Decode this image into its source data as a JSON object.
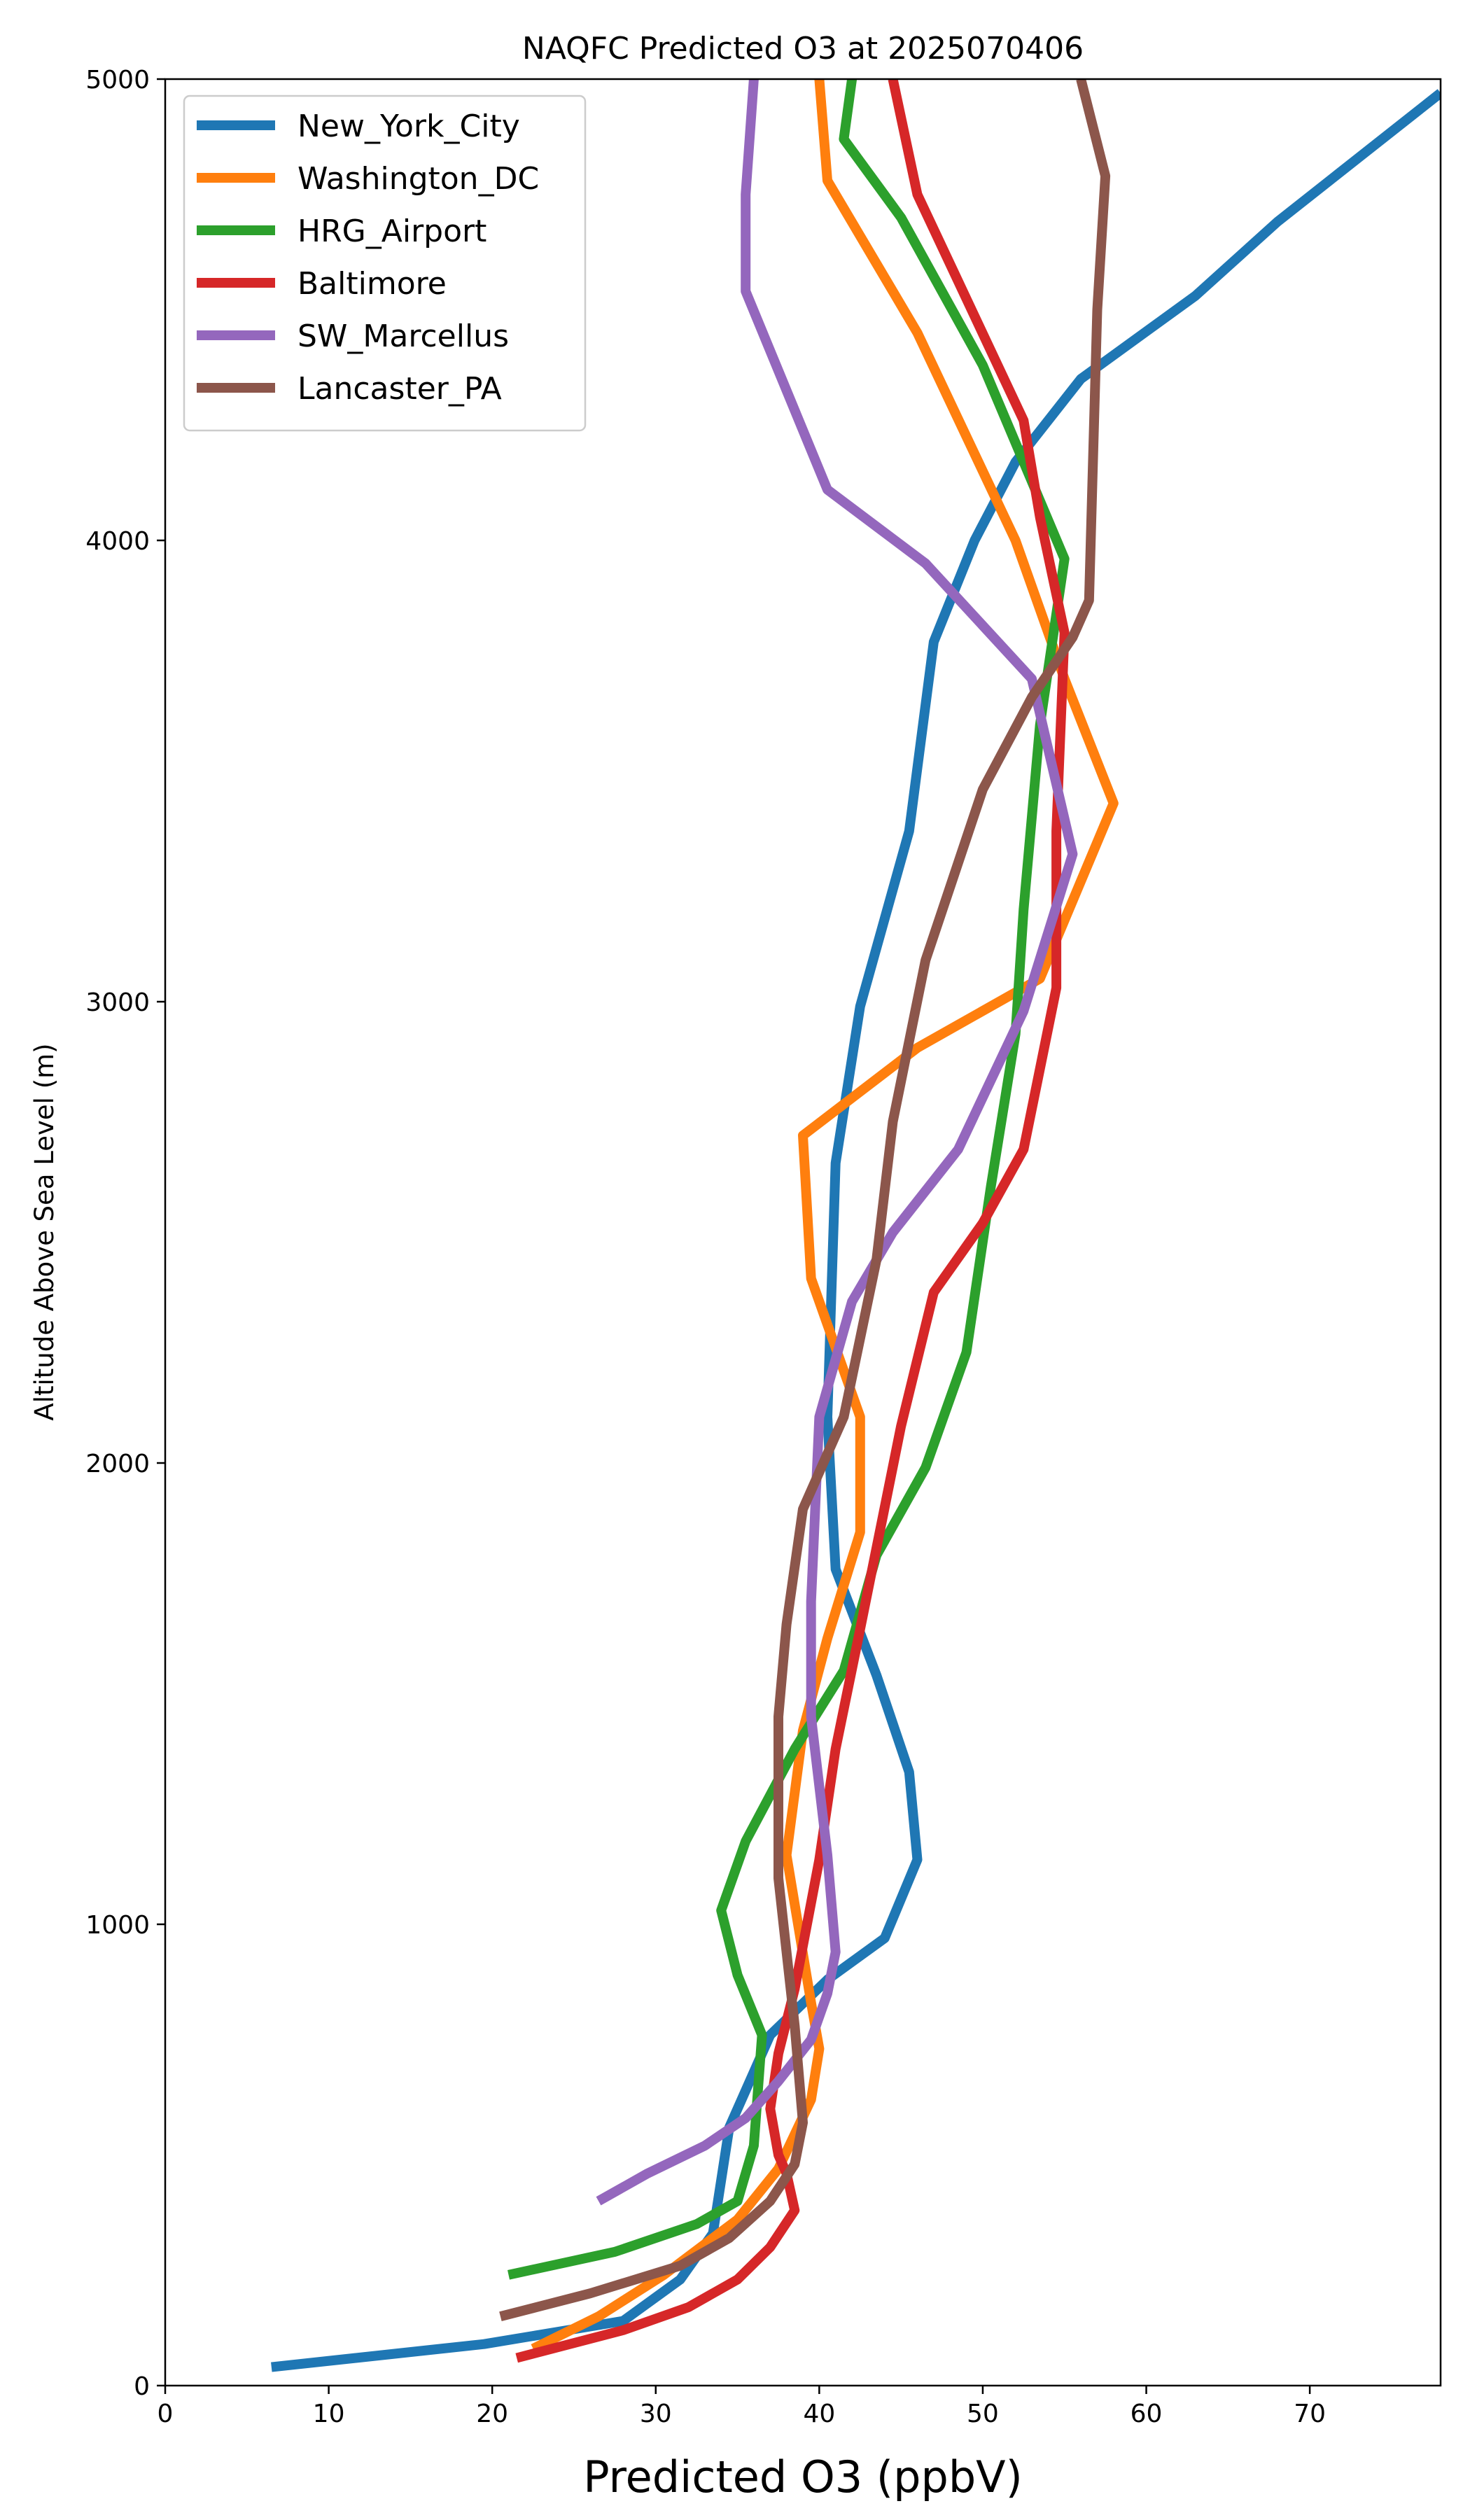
{
  "chart_data": {
    "type": "line",
    "title": "NAQFC Predicted O3 at 2025070406",
    "xlabel": "Predicted O3 (ppbV)",
    "ylabel": "Altitude Above Sea Level (m)",
    "xlim": [
      0,
      78
    ],
    "ylim": [
      0,
      5000
    ],
    "xticks": [
      0,
      10,
      20,
      30,
      40,
      50,
      60,
      70
    ],
    "yticks": [
      0,
      1000,
      2000,
      3000,
      4000,
      5000
    ],
    "grid": false,
    "legend_position": "upper-left",
    "series": [
      {
        "name": "New_York_City",
        "color": "#1f77b4",
        "points": [
          [
            6.5,
            40
          ],
          [
            19.5,
            90
          ],
          [
            28,
            140
          ],
          [
            31.5,
            230
          ],
          [
            33.5,
            330
          ],
          [
            34.5,
            560
          ],
          [
            37,
            760
          ],
          [
            40.5,
            880
          ],
          [
            44,
            970
          ],
          [
            46,
            1140
          ],
          [
            45.5,
            1330
          ],
          [
            43.5,
            1540
          ],
          [
            41,
            1770
          ],
          [
            40.5,
            2100
          ],
          [
            41,
            2650
          ],
          [
            42.5,
            2990
          ],
          [
            45.5,
            3370
          ],
          [
            47,
            3780
          ],
          [
            49.5,
            4000
          ],
          [
            52,
            4170
          ],
          [
            56,
            4350
          ],
          [
            63,
            4530
          ],
          [
            68,
            4690
          ],
          [
            73,
            4830
          ],
          [
            78,
            4970
          ]
        ]
      },
      {
        "name": "Washington_DC",
        "color": "#ff7f0e",
        "points": [
          [
            22.5,
            80
          ],
          [
            26.5,
            150
          ],
          [
            30.5,
            240
          ],
          [
            35,
            360
          ],
          [
            37.5,
            470
          ],
          [
            39.5,
            620
          ],
          [
            40,
            730
          ],
          [
            39.5,
            830
          ],
          [
            38,
            1150
          ],
          [
            39,
            1420
          ],
          [
            40.5,
            1620
          ],
          [
            42.5,
            1850
          ],
          [
            42.5,
            2100
          ],
          [
            39.5,
            2400
          ],
          [
            39,
            2710
          ],
          [
            46,
            2900
          ],
          [
            53.5,
            3050
          ],
          [
            58,
            3430
          ],
          [
            55,
            3700
          ],
          [
            52,
            4000
          ],
          [
            46,
            4450
          ],
          [
            40.5,
            4780
          ],
          [
            40,
            5000
          ]
        ]
      },
      {
        "name": "HRG_Airport",
        "color": "#2ca02c",
        "points": [
          [
            21,
            240
          ],
          [
            27.5,
            290
          ],
          [
            32.5,
            350
          ],
          [
            35,
            400
          ],
          [
            36,
            520
          ],
          [
            36.5,
            760
          ],
          [
            35,
            890
          ],
          [
            34,
            1030
          ],
          [
            35.5,
            1180
          ],
          [
            38.5,
            1380
          ],
          [
            41.5,
            1550
          ],
          [
            43.5,
            1800
          ],
          [
            46.5,
            1990
          ],
          [
            49,
            2240
          ],
          [
            50.5,
            2600
          ],
          [
            52,
            2930
          ],
          [
            52.5,
            3200
          ],
          [
            53.5,
            3600
          ],
          [
            55,
            3960
          ],
          [
            50,
            4380
          ],
          [
            45,
            4700
          ],
          [
            41.5,
            4870
          ],
          [
            42,
            5000
          ]
        ]
      },
      {
        "name": "Baltimore",
        "color": "#d62728",
        "points": [
          [
            21.5,
            60
          ],
          [
            28,
            120
          ],
          [
            32,
            170
          ],
          [
            35,
            230
          ],
          [
            37,
            300
          ],
          [
            38.5,
            380
          ],
          [
            38,
            460
          ],
          [
            37.5,
            500
          ],
          [
            37,
            600
          ],
          [
            37.5,
            720
          ],
          [
            38.5,
            860
          ],
          [
            40,
            1140
          ],
          [
            41,
            1380
          ],
          [
            42.5,
            1640
          ],
          [
            45,
            2080
          ],
          [
            47,
            2370
          ],
          [
            50,
            2520
          ],
          [
            52.5,
            2680
          ],
          [
            54.5,
            3030
          ],
          [
            54.5,
            3370
          ],
          [
            55,
            3800
          ],
          [
            53.5,
            4050
          ],
          [
            52.5,
            4260
          ],
          [
            46,
            4750
          ],
          [
            44.5,
            5000
          ]
        ]
      },
      {
        "name": "SW_Marcellus",
        "color": "#9467bd",
        "points": [
          [
            26.5,
            400
          ],
          [
            29.5,
            460
          ],
          [
            33,
            520
          ],
          [
            35.5,
            580
          ],
          [
            37.5,
            660
          ],
          [
            39.5,
            750
          ],
          [
            40.5,
            850
          ],
          [
            41,
            940
          ],
          [
            40.5,
            1150
          ],
          [
            39.5,
            1450
          ],
          [
            39.5,
            1700
          ],
          [
            40,
            2100
          ],
          [
            42,
            2350
          ],
          [
            44.5,
            2500
          ],
          [
            48.5,
            2680
          ],
          [
            52.5,
            2980
          ],
          [
            55.5,
            3320
          ],
          [
            53,
            3700
          ],
          [
            46.5,
            3950
          ],
          [
            40.5,
            4110
          ],
          [
            35.5,
            4540
          ],
          [
            35.5,
            4750
          ],
          [
            36,
            5000
          ]
        ]
      },
      {
        "name": "Lancaster_PA",
        "color": "#8c564b",
        "points": [
          [
            20.5,
            150
          ],
          [
            26,
            200
          ],
          [
            31.5,
            260
          ],
          [
            34.5,
            320
          ],
          [
            37,
            400
          ],
          [
            38.5,
            480
          ],
          [
            39,
            570
          ],
          [
            38.5,
            780
          ],
          [
            38,
            940
          ],
          [
            37.5,
            1100
          ],
          [
            37.5,
            1450
          ],
          [
            38,
            1650
          ],
          [
            39,
            1900
          ],
          [
            41.5,
            2100
          ],
          [
            43.5,
            2440
          ],
          [
            44.5,
            2740
          ],
          [
            46.5,
            3090
          ],
          [
            50,
            3460
          ],
          [
            53,
            3660
          ],
          [
            55.5,
            3790
          ],
          [
            56.5,
            3870
          ],
          [
            57,
            4500
          ],
          [
            57.5,
            4790
          ],
          [
            56,
            5000
          ]
        ]
      }
    ]
  }
}
